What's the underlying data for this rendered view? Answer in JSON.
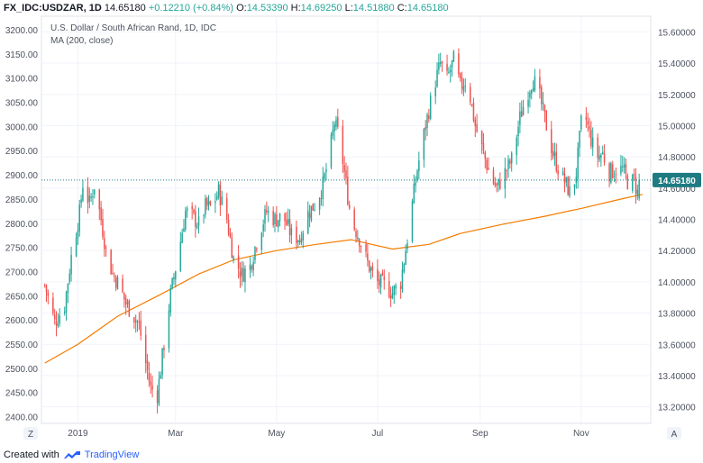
{
  "header": {
    "symbol": "FX_IDC:USDZAR, 1D",
    "last": "14.65180",
    "change": "+0.12210 (+0.84%)",
    "o_label": "O:",
    "o_value": "14.53390",
    "h_label": "H:",
    "h_value": "14.69250",
    "l_label": "L:",
    "l_value": "14.51880",
    "c_label": "C:",
    "c_value": "14.65180"
  },
  "footer": {
    "created_with": "Created with",
    "brand": "TradingView"
  },
  "axis_buttons": {
    "left": "Z",
    "right": "A"
  },
  "colors": {
    "up": "#26a69a",
    "down": "#ef5350",
    "ma": "#f57c00",
    "last_label_bg": "#1e7b82",
    "last_line": "#1e7b82"
  },
  "chart_data": {
    "type": "candlestick",
    "title": "U.S. Dollar / South African Rand, 1D, IDC",
    "indicator": "MA (200, close)",
    "last_price_label": "14.65180",
    "x_labels": [
      "2019",
      "Mar",
      "May",
      "Jul",
      "Sep",
      "Nov"
    ],
    "x_label_dates": [
      "2019-01-01",
      "2019-03-01",
      "2019-05-01",
      "2019-07-01",
      "2019-09-01",
      "2019-11-01"
    ],
    "x_range": [
      "2018-12-10",
      "2019-12-13"
    ],
    "left_axis": {
      "ticks": [
        2400,
        2450,
        2500,
        2550,
        2600,
        2650,
        2700,
        2750,
        2800,
        2850,
        2900,
        2950,
        3000,
        3050,
        3100,
        3150,
        3200
      ],
      "tick_labels": [
        "2400.00",
        "2450.00",
        "2500.00",
        "2550.00",
        "2600.00",
        "2650.00",
        "2700.00",
        "2750.00",
        "2800.00",
        "2850.00",
        "2900.00",
        "2950.00",
        "3000.00",
        "3050.00",
        "3100.00",
        "3150.00",
        "3200.00"
      ],
      "range": [
        2386,
        3228
      ]
    },
    "right_axis": {
      "ticks": [
        13.2,
        13.4,
        13.6,
        13.8,
        14.0,
        14.2,
        14.4,
        14.6,
        14.8,
        15.0,
        15.2,
        15.4,
        15.6
      ],
      "tick_labels": [
        "13.20000",
        "13.40000",
        "13.60000",
        "13.80000",
        "14.00000",
        "14.20000",
        "14.40000",
        "14.60000",
        "14.80000",
        "15.00000",
        "15.20000",
        "15.40000",
        "15.60000"
      ],
      "range": [
        13.094,
        15.701
      ]
    },
    "price_path": [
      [
        "2018-12-12",
        13.98
      ],
      [
        "2018-12-18",
        13.74
      ],
      [
        "2018-12-24",
        13.85
      ],
      [
        "2018-12-28",
        14.16
      ],
      [
        "2019-01-02",
        14.44
      ],
      [
        "2019-01-04",
        14.63
      ],
      [
        "2019-01-08",
        14.5
      ],
      [
        "2019-01-11",
        14.62
      ],
      [
        "2019-01-15",
        14.4
      ],
      [
        "2019-01-18",
        14.2
      ],
      [
        "2019-01-22",
        14.05
      ],
      [
        "2019-01-26",
        13.98
      ],
      [
        "2019-01-30",
        13.86
      ],
      [
        "2019-02-03",
        13.8
      ],
      [
        "2019-02-07",
        13.72
      ],
      [
        "2019-02-11",
        13.48
      ],
      [
        "2019-02-14",
        13.32
      ],
      [
        "2019-02-18",
        13.28
      ],
      [
        "2019-02-22",
        13.6
      ],
      [
        "2019-02-26",
        13.92
      ],
      [
        "2019-03-03",
        14.2
      ],
      [
        "2019-03-07",
        14.45
      ],
      [
        "2019-03-11",
        14.42
      ],
      [
        "2019-03-15",
        14.37
      ],
      [
        "2019-03-19",
        14.48
      ],
      [
        "2019-03-23",
        14.48
      ],
      [
        "2019-03-27",
        14.58
      ],
      [
        "2019-04-01",
        14.4
      ],
      [
        "2019-04-05",
        14.15
      ],
      [
        "2019-04-10",
        14.05
      ],
      [
        "2019-04-15",
        14.1
      ],
      [
        "2019-04-20",
        14.3
      ],
      [
        "2019-04-25",
        14.45
      ],
      [
        "2019-04-30",
        14.4
      ],
      [
        "2019-05-05",
        14.42
      ],
      [
        "2019-05-10",
        14.3
      ],
      [
        "2019-05-15",
        14.28
      ],
      [
        "2019-05-20",
        14.44
      ],
      [
        "2019-05-25",
        14.51
      ],
      [
        "2019-05-29",
        14.62
      ],
      [
        "2019-06-02",
        14.82
      ],
      [
        "2019-06-05",
        15.02
      ],
      [
        "2019-06-08",
        14.92
      ],
      [
        "2019-06-11",
        14.7
      ],
      [
        "2019-06-15",
        14.4
      ],
      [
        "2019-06-20",
        14.28
      ],
      [
        "2019-06-25",
        14.12
      ],
      [
        "2019-06-30",
        14.0
      ],
      [
        "2019-07-05",
        13.98
      ],
      [
        "2019-07-10",
        13.93
      ],
      [
        "2019-07-15",
        14.0
      ],
      [
        "2019-07-20",
        14.35
      ],
      [
        "2019-07-25",
        14.72
      ],
      [
        "2019-07-30",
        15.0
      ],
      [
        "2019-08-04",
        15.25
      ],
      [
        "2019-08-08",
        15.4
      ],
      [
        "2019-08-12",
        15.3
      ],
      [
        "2019-08-16",
        15.42
      ],
      [
        "2019-08-20",
        15.25
      ],
      [
        "2019-08-24",
        15.3
      ],
      [
        "2019-08-29",
        15.0
      ],
      [
        "2019-09-03",
        14.82
      ],
      [
        "2019-09-07",
        14.68
      ],
      [
        "2019-09-11",
        14.6
      ],
      [
        "2019-09-16",
        14.7
      ],
      [
        "2019-09-20",
        14.78
      ],
      [
        "2019-09-25",
        15.05
      ],
      [
        "2019-09-29",
        15.2
      ],
      [
        "2019-10-03",
        15.3
      ],
      [
        "2019-10-07",
        15.18
      ],
      [
        "2019-10-11",
        15.0
      ],
      [
        "2019-10-15",
        14.82
      ],
      [
        "2019-10-19",
        14.7
      ],
      [
        "2019-10-23",
        14.62
      ],
      [
        "2019-10-26",
        14.55
      ],
      [
        "2019-10-29",
        14.7
      ],
      [
        "2019-11-02",
        15.12
      ],
      [
        "2019-11-06",
        14.95
      ],
      [
        "2019-11-10",
        14.8
      ],
      [
        "2019-11-14",
        14.82
      ],
      [
        "2019-11-18",
        14.7
      ],
      [
        "2019-11-22",
        14.72
      ],
      [
        "2019-11-26",
        14.72
      ],
      [
        "2019-11-30",
        14.62
      ],
      [
        "2019-12-03",
        14.65
      ],
      [
        "2019-12-06",
        14.53
      ],
      [
        "2019-12-08",
        14.65
      ]
    ],
    "ma_path": [
      [
        "2018-12-12",
        13.48
      ],
      [
        "2019-01-01",
        13.6
      ],
      [
        "2019-01-25",
        13.78
      ],
      [
        "2019-02-20",
        13.92
      ],
      [
        "2019-03-15",
        14.05
      ],
      [
        "2019-04-05",
        14.14
      ],
      [
        "2019-05-01",
        14.2
      ],
      [
        "2019-05-25",
        14.24
      ],
      [
        "2019-06-15",
        14.27
      ],
      [
        "2019-07-10",
        14.21
      ],
      [
        "2019-08-01",
        14.24
      ],
      [
        "2019-08-20",
        14.31
      ],
      [
        "2019-09-15",
        14.37
      ],
      [
        "2019-10-10",
        14.42
      ],
      [
        "2019-11-01",
        14.47
      ],
      [
        "2019-11-25",
        14.53
      ],
      [
        "2019-12-08",
        14.56
      ]
    ]
  }
}
